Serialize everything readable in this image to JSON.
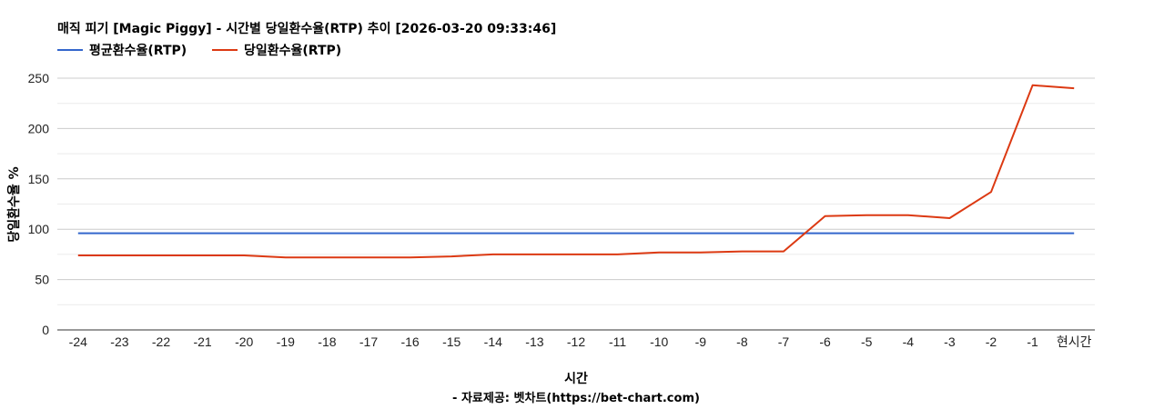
{
  "chart_data": {
    "type": "line",
    "title": "매직 피기 [Magic Piggy] - 시간별 당일환수율(RTP) 추이 [2026-03-20 09:33:46]",
    "xlabel": "시간",
    "ylabel": "당일환수율 %",
    "source": "- 자료제공: 벳차트(https://bet-chart.com)",
    "categories": [
      "-24",
      "-23",
      "-22",
      "-21",
      "-20",
      "-19",
      "-18",
      "-17",
      "-16",
      "-15",
      "-14",
      "-13",
      "-12",
      "-11",
      "-10",
      "-9",
      "-8",
      "-7",
      "-6",
      "-5",
      "-4",
      "-3",
      "-2",
      "-1",
      "현시간"
    ],
    "ylim": [
      0,
      250
    ],
    "yticks": [
      0,
      50,
      100,
      150,
      200,
      250
    ],
    "grid": true,
    "legend_position": "top-left",
    "series": [
      {
        "name": "평균환수율(RTP)",
        "color": "#3366cc",
        "values": [
          96,
          96,
          96,
          96,
          96,
          96,
          96,
          96,
          96,
          96,
          96,
          96,
          96,
          96,
          96,
          96,
          96,
          96,
          96,
          96,
          96,
          96,
          96,
          96,
          96
        ]
      },
      {
        "name": "당일환수율(RTP)",
        "color": "#dc3912",
        "values": [
          74,
          74,
          74,
          74,
          74,
          72,
          72,
          72,
          72,
          73,
          75,
          75,
          75,
          75,
          77,
          77,
          78,
          78,
          113,
          114,
          114,
          111,
          137,
          243,
          240
        ]
      }
    ]
  }
}
